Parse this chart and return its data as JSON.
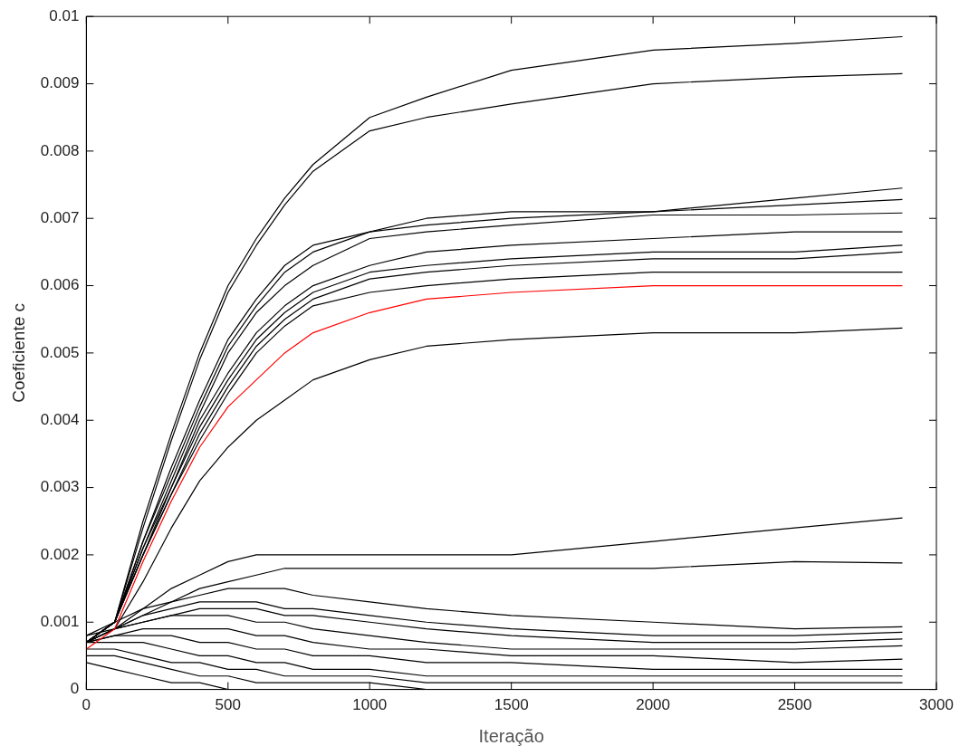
{
  "chart_data": {
    "type": "line",
    "xlabel": "Iteração",
    "ylabel": "Coeficiente c",
    "x": [
      0,
      100,
      200,
      300,
      400,
      500,
      600,
      700,
      800,
      1000,
      1200,
      1500,
      2000,
      2500,
      2880
    ],
    "xlim": [
      0,
      3000
    ],
    "xticks": [
      0,
      500,
      1000,
      1500,
      2000,
      2500,
      3000
    ],
    "ylim": [
      0,
      0.01
    ],
    "yticks": [
      0,
      0.001,
      0.002,
      0.003,
      0.004,
      0.005,
      0.006,
      0.007,
      0.008,
      0.009,
      0.01
    ],
    "grid": false,
    "legend": false,
    "marker": "none",
    "line_style": "solid",
    "series": [
      {
        "color": "#000000",
        "values": [
          0.0007,
          0.001,
          0.0025,
          0.0038,
          0.005,
          0.006,
          0.0067,
          0.0073,
          0.0078,
          0.0085,
          0.0088,
          0.0092,
          0.0095,
          0.0096,
          0.0097
        ]
      },
      {
        "color": "#000000",
        "values": [
          0.0007,
          0.001,
          0.0024,
          0.0037,
          0.0049,
          0.0059,
          0.0066,
          0.0072,
          0.0077,
          0.0083,
          0.0085,
          0.0087,
          0.009,
          0.0091,
          0.00915
        ]
      },
      {
        "color": "#000000",
        "values": [
          0.0007,
          0.001,
          0.0022,
          0.0033,
          0.0043,
          0.0052,
          0.0058,
          0.0063,
          0.0066,
          0.0068,
          0.007,
          0.0071,
          0.0071,
          0.0073,
          0.00745
        ]
      },
      {
        "color": "#000000",
        "values": [
          0.0007,
          0.001,
          0.0022,
          0.0032,
          0.0042,
          0.0051,
          0.0057,
          0.0062,
          0.0065,
          0.0068,
          0.0069,
          0.007,
          0.0071,
          0.0072,
          0.00728
        ]
      },
      {
        "color": "#000000",
        "values": [
          0.0007,
          0.001,
          0.0021,
          0.0031,
          0.0041,
          0.005,
          0.0056,
          0.006,
          0.0063,
          0.0067,
          0.0068,
          0.0069,
          0.00705,
          0.00705,
          0.00708
        ]
      },
      {
        "color": "#000000",
        "values": [
          0.0007,
          0.001,
          0.0021,
          0.003,
          0.004,
          0.0047,
          0.0053,
          0.0057,
          0.006,
          0.0063,
          0.0065,
          0.0066,
          0.0067,
          0.0068,
          0.0068
        ]
      },
      {
        "color": "#000000",
        "values": [
          0.0007,
          0.001,
          0.002,
          0.003,
          0.0039,
          0.0046,
          0.0052,
          0.0056,
          0.0059,
          0.0062,
          0.0063,
          0.0064,
          0.0065,
          0.0065,
          0.0066
        ]
      },
      {
        "color": "#000000",
        "values": [
          0.0007,
          0.001,
          0.002,
          0.0029,
          0.0038,
          0.0045,
          0.0051,
          0.0055,
          0.0058,
          0.0061,
          0.0062,
          0.0063,
          0.0064,
          0.0064,
          0.0065
        ]
      },
      {
        "color": "#000000",
        "values": [
          0.0007,
          0.001,
          0.002,
          0.0029,
          0.0037,
          0.0044,
          0.005,
          0.0054,
          0.0057,
          0.0059,
          0.006,
          0.0061,
          0.0062,
          0.0062,
          0.0062
        ]
      },
      {
        "color": "#ff0000",
        "values": [
          0.0006,
          0.0009,
          0.0019,
          0.0028,
          0.0036,
          0.0042,
          0.0046,
          0.005,
          0.0053,
          0.0056,
          0.0058,
          0.0059,
          0.006,
          0.006,
          0.006
        ]
      },
      {
        "color": "#000000",
        "values": [
          0.0007,
          0.0009,
          0.0016,
          0.0024,
          0.0031,
          0.0036,
          0.004,
          0.0043,
          0.0046,
          0.0049,
          0.0051,
          0.0052,
          0.0053,
          0.0053,
          0.00537
        ]
      },
      {
        "color": "#000000",
        "values": [
          0.0007,
          0.0009,
          0.0012,
          0.0015,
          0.0017,
          0.0019,
          0.002,
          0.002,
          0.002,
          0.002,
          0.002,
          0.002,
          0.0022,
          0.0024,
          0.00255
        ]
      },
      {
        "color": "#000000",
        "values": [
          0.0007,
          0.0009,
          0.0011,
          0.0013,
          0.0015,
          0.0016,
          0.0017,
          0.0018,
          0.0018,
          0.0018,
          0.0018,
          0.0018,
          0.0018,
          0.0019,
          0.00188
        ]
      },
      {
        "color": "#000000",
        "values": [
          0.0008,
          0.001,
          0.0012,
          0.0013,
          0.0014,
          0.0015,
          0.0015,
          0.0015,
          0.0014,
          0.0013,
          0.0012,
          0.0011,
          0.001,
          0.0009,
          0.00093
        ]
      },
      {
        "color": "#000000",
        "values": [
          0.0008,
          0.0009,
          0.0011,
          0.0012,
          0.0013,
          0.0013,
          0.0013,
          0.0012,
          0.0012,
          0.0011,
          0.001,
          0.0009,
          0.0008,
          0.0008,
          0.00085
        ]
      },
      {
        "color": "#000000",
        "values": [
          0.0007,
          0.0009,
          0.001,
          0.0011,
          0.0012,
          0.0012,
          0.0012,
          0.0011,
          0.0011,
          0.001,
          0.0009,
          0.0008,
          0.0007,
          0.0007,
          0.00075
        ]
      },
      {
        "color": "#000000",
        "values": [
          0.0007,
          0.0009,
          0.001,
          0.0011,
          0.0011,
          0.0011,
          0.001,
          0.001,
          0.0009,
          0.0008,
          0.0007,
          0.0006,
          0.0006,
          0.0006,
          0.00065
        ]
      },
      {
        "color": "#000000",
        "values": [
          0.0007,
          0.0008,
          0.0009,
          0.0009,
          0.0009,
          0.0009,
          0.0008,
          0.0008,
          0.0007,
          0.0006,
          0.0006,
          0.0005,
          0.0005,
          0.0004,
          0.00045
        ]
      },
      {
        "color": "#000000",
        "values": [
          0.0007,
          0.0008,
          0.0008,
          0.0008,
          0.0007,
          0.0007,
          0.0006,
          0.0006,
          0.0005,
          0.0005,
          0.0004,
          0.0004,
          0.0003,
          0.0003,
          0.0003
        ]
      },
      {
        "color": "#000000",
        "values": [
          0.0007,
          0.0007,
          0.0007,
          0.0006,
          0.0005,
          0.0005,
          0.0004,
          0.0004,
          0.0003,
          0.0003,
          0.0002,
          0.0002,
          0.0002,
          0.0002,
          0.0002
        ]
      },
      {
        "color": "#000000",
        "values": [
          0.0006,
          0.0006,
          0.0005,
          0.0004,
          0.0004,
          0.0003,
          0.0003,
          0.0002,
          0.0002,
          0.0002,
          0.0001,
          0.0001,
          0.0001,
          0.0001,
          0.0001
        ]
      },
      {
        "color": "#000000",
        "values": [
          0.0005,
          0.0005,
          0.0004,
          0.0003,
          0.0002,
          0.0002,
          0.0001,
          0.0001,
          0.0001,
          0.0001,
          0,
          0,
          0,
          0,
          0
        ]
      },
      {
        "color": "#000000",
        "values": [
          0.0004,
          0.0003,
          0.0002,
          0.0001,
          0.0001,
          0,
          0,
          0,
          0,
          0,
          0,
          0,
          0,
          0,
          0
        ]
      }
    ]
  }
}
